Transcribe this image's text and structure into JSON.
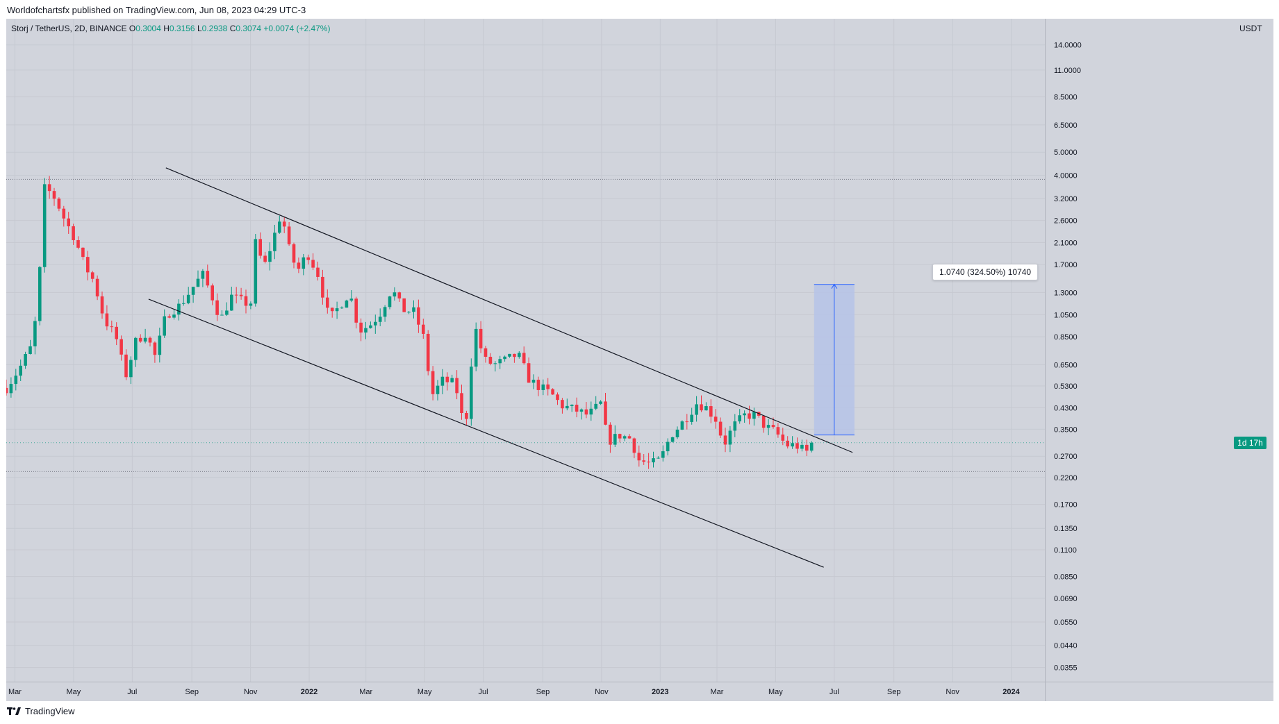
{
  "header": {
    "published": "Worldofchartsfx published on TradingView.com, Jun 08, 2023 04:29 UTC-3"
  },
  "symbol": {
    "name": "Storj / TetherUS, 2D, BINANCE",
    "open_label": "O",
    "open": "0.3004",
    "high_label": "H",
    "high": "0.3156",
    "low_label": "L",
    "low": "0.2938",
    "close_label": "C",
    "close": "0.3074",
    "change": "+0.0074 (+2.47%)"
  },
  "currency": "USDT",
  "countdown": "1d 17h",
  "measure_label": "1.0740 (324.50%) 10740",
  "brand": "TradingView",
  "colors": {
    "up": "#089981",
    "down": "#f23645",
    "background": "#d1d4dc",
    "measure_fill": "#b6c3e8",
    "measure_line": "#2962ff"
  },
  "chart_data": {
    "type": "candlestick",
    "y_scale": "log",
    "ylim": [
      0.031,
      18
    ],
    "y_ticks": [
      "14.0000",
      "11.0000",
      "8.5000",
      "6.5000",
      "5.0000",
      "4.0000",
      "3.2000",
      "2.6000",
      "2.1000",
      "1.7000",
      "1.3000",
      "1.0500",
      "0.8500",
      "0.6500",
      "0.5300",
      "0.4300",
      "0.3500",
      "0.2700",
      "0.2200",
      "0.1700",
      "0.1350",
      "0.1100",
      "0.0850",
      "0.0690",
      "0.0550",
      "0.0440",
      "0.0355"
    ],
    "x_ticks": [
      {
        "date": "2021-03-01",
        "label": "Mar",
        "bold": false
      },
      {
        "date": "2021-05-01",
        "label": "May",
        "bold": false
      },
      {
        "date": "2021-07-01",
        "label": "Jul",
        "bold": false
      },
      {
        "date": "2021-09-01",
        "label": "Sep",
        "bold": false
      },
      {
        "date": "2021-11-01",
        "label": "Nov",
        "bold": false
      },
      {
        "date": "2022-01-01",
        "label": "2022",
        "bold": true
      },
      {
        "date": "2022-03-01",
        "label": "Mar",
        "bold": false
      },
      {
        "date": "2022-05-01",
        "label": "May",
        "bold": false
      },
      {
        "date": "2022-07-01",
        "label": "Jul",
        "bold": false
      },
      {
        "date": "2022-09-01",
        "label": "Sep",
        "bold": false
      },
      {
        "date": "2022-11-01",
        "label": "Nov",
        "bold": false
      },
      {
        "date": "2023-01-01",
        "label": "2023",
        "bold": true
      },
      {
        "date": "2023-03-01",
        "label": "Mar",
        "bold": false
      },
      {
        "date": "2023-05-01",
        "label": "May",
        "bold": false
      },
      {
        "date": "2023-07-01",
        "label": "Jul",
        "bold": false
      },
      {
        "date": "2023-09-01",
        "label": "Sep",
        "bold": false
      },
      {
        "date": "2023-11-01",
        "label": "Nov",
        "bold": false
      },
      {
        "date": "2024-01-01",
        "label": "2024",
        "bold": true
      }
    ],
    "series_path": [
      [
        "2021-02-20",
        0.52
      ],
      [
        "2021-03-05",
        0.62
      ],
      [
        "2021-03-20",
        0.8
      ],
      [
        "2021-03-28",
        1.8
      ],
      [
        "2021-04-01",
        3.6
      ],
      [
        "2021-04-12",
        3.2
      ],
      [
        "2021-04-22",
        2.6
      ],
      [
        "2021-05-02",
        2.2
      ],
      [
        "2021-05-12",
        1.7
      ],
      [
        "2021-05-22",
        1.45
      ],
      [
        "2021-06-02",
        1.0
      ],
      [
        "2021-06-14",
        0.85
      ],
      [
        "2021-06-24",
        0.58
      ],
      [
        "2021-07-05",
        0.82
      ],
      [
        "2021-07-15",
        0.88
      ],
      [
        "2021-07-25",
        0.7
      ],
      [
        "2021-08-05",
        1.05
      ],
      [
        "2021-08-20",
        1.15
      ],
      [
        "2021-09-01",
        1.35
      ],
      [
        "2021-09-12",
        1.55
      ],
      [
        "2021-09-22",
        1.25
      ],
      [
        "2021-10-01",
        1.0
      ],
      [
        "2021-10-12",
        1.25
      ],
      [
        "2021-10-22",
        1.2
      ],
      [
        "2021-11-01",
        1.15
      ],
      [
        "2021-11-06",
        2.1
      ],
      [
        "2021-11-15",
        1.65
      ],
      [
        "2021-11-25",
        2.2
      ],
      [
        "2021-12-03",
        2.8
      ],
      [
        "2021-12-12",
        1.9
      ],
      [
        "2021-12-20",
        1.6
      ],
      [
        "2021-12-30",
        1.9
      ],
      [
        "2022-01-10",
        1.55
      ],
      [
        "2022-01-22",
        1.0
      ],
      [
        "2022-02-02",
        1.15
      ],
      [
        "2022-02-12",
        1.3
      ],
      [
        "2022-02-22",
        0.9
      ],
      [
        "2022-03-05",
        0.95
      ],
      [
        "2022-03-15",
        1.05
      ],
      [
        "2022-03-28",
        1.35
      ],
      [
        "2022-04-08",
        1.1
      ],
      [
        "2022-04-20",
        1.08
      ],
      [
        "2022-05-01",
        0.82
      ],
      [
        "2022-05-08",
        0.48
      ],
      [
        "2022-05-20",
        0.56
      ],
      [
        "2022-06-02",
        0.54
      ],
      [
        "2022-06-12",
        0.34
      ],
      [
        "2022-06-22",
        0.95
      ],
      [
        "2022-07-02",
        0.68
      ],
      [
        "2022-07-12",
        0.65
      ],
      [
        "2022-07-25",
        0.68
      ],
      [
        "2022-08-06",
        0.72
      ],
      [
        "2022-08-18",
        0.56
      ],
      [
        "2022-08-30",
        0.52
      ],
      [
        "2022-09-10",
        0.49
      ],
      [
        "2022-09-20",
        0.44
      ],
      [
        "2022-10-05",
        0.42
      ],
      [
        "2022-10-18",
        0.4
      ],
      [
        "2022-11-01",
        0.45
      ],
      [
        "2022-11-07",
        0.31
      ],
      [
        "2022-11-20",
        0.33
      ],
      [
        "2022-12-01",
        0.32
      ],
      [
        "2022-12-10",
        0.26
      ],
      [
        "2022-12-22",
        0.25
      ],
      [
        "2023-01-01",
        0.26
      ],
      [
        "2023-01-12",
        0.33
      ],
      [
        "2023-01-26",
        0.38
      ],
      [
        "2023-02-08",
        0.45
      ],
      [
        "2023-02-18",
        0.43
      ],
      [
        "2023-03-01",
        0.38
      ],
      [
        "2023-03-08",
        0.3
      ],
      [
        "2023-03-18",
        0.36
      ],
      [
        "2023-03-30",
        0.4
      ],
      [
        "2023-04-10",
        0.4
      ],
      [
        "2023-04-20",
        0.36
      ],
      [
        "2023-05-01",
        0.34
      ],
      [
        "2023-05-12",
        0.3
      ],
      [
        "2023-05-22",
        0.3
      ],
      [
        "2023-06-02",
        0.28
      ],
      [
        "2023-06-08",
        0.3074
      ]
    ],
    "resistance_line": [
      [
        "2021-08-05",
        4.3
      ],
      [
        "2023-07-20",
        0.28
      ]
    ],
    "support_line": [
      [
        "2021-07-18",
        1.22
      ],
      [
        "2023-06-20",
        0.093
      ]
    ],
    "horizontal_levels": [
      3.85,
      0.233
    ],
    "measure": {
      "from_date": "2023-06-10",
      "to_date": "2023-07-22",
      "from_value": 0.331,
      "to_value": 1.405
    },
    "last_price": 0.3074
  }
}
